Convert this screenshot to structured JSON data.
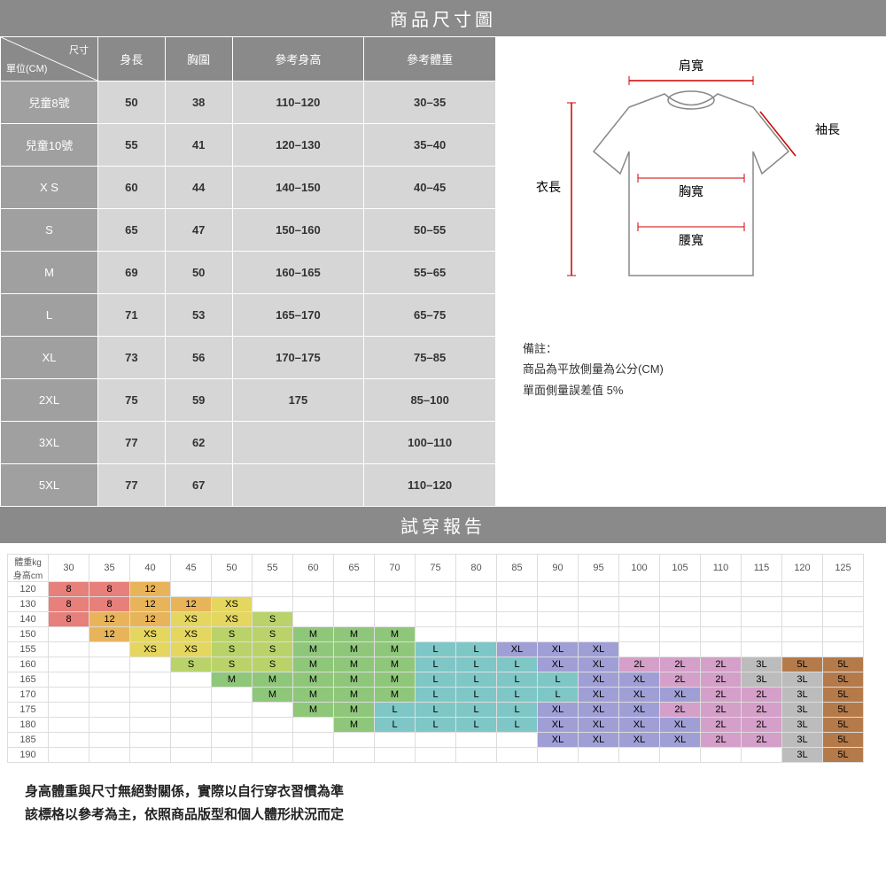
{
  "banner1": "商品尺寸圖",
  "banner2": "試穿報告",
  "corner": {
    "top": "尺寸",
    "bottom": "單位(CM)"
  },
  "size_headers": [
    "身長",
    "胸圍",
    "參考身高",
    "參考體重"
  ],
  "size_rows": [
    {
      "label": "兒童8號",
      "vals": [
        "50",
        "38",
        "110–120",
        "30–35"
      ]
    },
    {
      "label": "兒童10號",
      "vals": [
        "55",
        "41",
        "120–130",
        "35–40"
      ]
    },
    {
      "label": "X S",
      "vals": [
        "60",
        "44",
        "140–150",
        "40–45"
      ]
    },
    {
      "label": "S",
      "vals": [
        "65",
        "47",
        "150–160",
        "50–55"
      ]
    },
    {
      "label": "M",
      "vals": [
        "69",
        "50",
        "160–165",
        "55–65"
      ]
    },
    {
      "label": "L",
      "vals": [
        "71",
        "53",
        "165–170",
        "65–75"
      ]
    },
    {
      "label": "XL",
      "vals": [
        "73",
        "56",
        "170–175",
        "75–85"
      ]
    },
    {
      "label": "2XL",
      "vals": [
        "75",
        "59",
        "175",
        "85–100"
      ]
    },
    {
      "label": "3XL",
      "vals": [
        "77",
        "62",
        "",
        "100–110"
      ]
    },
    {
      "label": "5XL",
      "vals": [
        "77",
        "67",
        "",
        "110–120"
      ]
    }
  ],
  "diagram_labels": {
    "shoulder": "肩寬",
    "sleeve": "袖長",
    "length": "衣長",
    "chest": "胸寬",
    "waist": "腰寬"
  },
  "note": {
    "l1": "備註：",
    "l2": "商品為平放側量為公分(CM)",
    "l3": "單面側量誤差值 5%"
  },
  "fit": {
    "axis_weight": "體重kg",
    "axis_height": "身高cm",
    "weights": [
      "30",
      "35",
      "40",
      "45",
      "50",
      "55",
      "60",
      "65",
      "70",
      "75",
      "80",
      "85",
      "90",
      "95",
      "100",
      "105",
      "110",
      "115",
      "120",
      "125"
    ],
    "heights": [
      "120",
      "130",
      "140",
      "150",
      "155",
      "160",
      "165",
      "170",
      "175",
      "180",
      "185",
      "190"
    ],
    "colors": {
      "8": "#e77f7a",
      "12": "#e8b45a",
      "XS": "#e4d65f",
      "S": "#b9d36a",
      "M": "#8fc77a",
      "L": "#7fc7c7",
      "XL": "#9f9fd6",
      "2L": "#d49fc8",
      "3L": "#bcbcbc",
      "5L": "#b57a4a"
    },
    "grid": [
      [
        "8",
        "8",
        "12",
        "",
        "",
        "",
        "",
        "",
        "",
        "",
        "",
        "",
        "",
        "",
        "",
        "",
        "",
        "",
        "",
        ""
      ],
      [
        "8",
        "8",
        "12",
        "12",
        "XS",
        "",
        "",
        "",
        "",
        "",
        "",
        "",
        "",
        "",
        "",
        "",
        "",
        "",
        "",
        ""
      ],
      [
        "8",
        "12",
        "12",
        "XS",
        "XS",
        "S",
        "",
        "",
        "",
        "",
        "",
        "",
        "",
        "",
        "",
        "",
        "",
        "",
        "",
        ""
      ],
      [
        "",
        "12",
        "XS",
        "XS",
        "S",
        "S",
        "M",
        "M",
        "M",
        "",
        "",
        "",
        "",
        "",
        "",
        "",
        "",
        "",
        "",
        ""
      ],
      [
        "",
        "",
        "XS",
        "XS",
        "S",
        "S",
        "M",
        "M",
        "M",
        "L",
        "L",
        "XL",
        "XL",
        "XL",
        "",
        "",
        "",
        "",
        "",
        ""
      ],
      [
        "",
        "",
        "",
        "S",
        "S",
        "S",
        "M",
        "M",
        "M",
        "L",
        "L",
        "L",
        "XL",
        "XL",
        "2L",
        "2L",
        "2L",
        "3L",
        "5L",
        "5L"
      ],
      [
        "",
        "",
        "",
        "",
        "M",
        "M",
        "M",
        "M",
        "M",
        "L",
        "L",
        "L",
        "L",
        "XL",
        "XL",
        "2L",
        "2L",
        "3L",
        "3L",
        "5L"
      ],
      [
        "",
        "",
        "",
        "",
        "",
        "M",
        "M",
        "M",
        "M",
        "L",
        "L",
        "L",
        "L",
        "XL",
        "XL",
        "XL",
        "2L",
        "2L",
        "3L",
        "5L"
      ],
      [
        "",
        "",
        "",
        "",
        "",
        "",
        "M",
        "M",
        "L",
        "L",
        "L",
        "L",
        "XL",
        "XL",
        "XL",
        "2L",
        "2L",
        "2L",
        "3L",
        "5L"
      ],
      [
        "",
        "",
        "",
        "",
        "",
        "",
        "",
        "M",
        "L",
        "L",
        "L",
        "L",
        "XL",
        "XL",
        "XL",
        "XL",
        "2L",
        "2L",
        "3L",
        "5L"
      ],
      [
        "",
        "",
        "",
        "",
        "",
        "",
        "",
        "",
        "",
        "",
        "",
        "",
        "XL",
        "XL",
        "XL",
        "XL",
        "2L",
        "2L",
        "3L",
        "5L"
      ],
      [
        "",
        "",
        "",
        "",
        "",
        "",
        "",
        "",
        "",
        "",
        "",
        "",
        "",
        "",
        "",
        "",
        "",
        "",
        "3L",
        "5L"
      ]
    ]
  },
  "footer": {
    "l1": "身高體重與尺寸無絕對關係，實際以自行穿衣習慣為準",
    "l2": "該標格以參考為主，依照商品版型和個人體形狀況而定"
  }
}
